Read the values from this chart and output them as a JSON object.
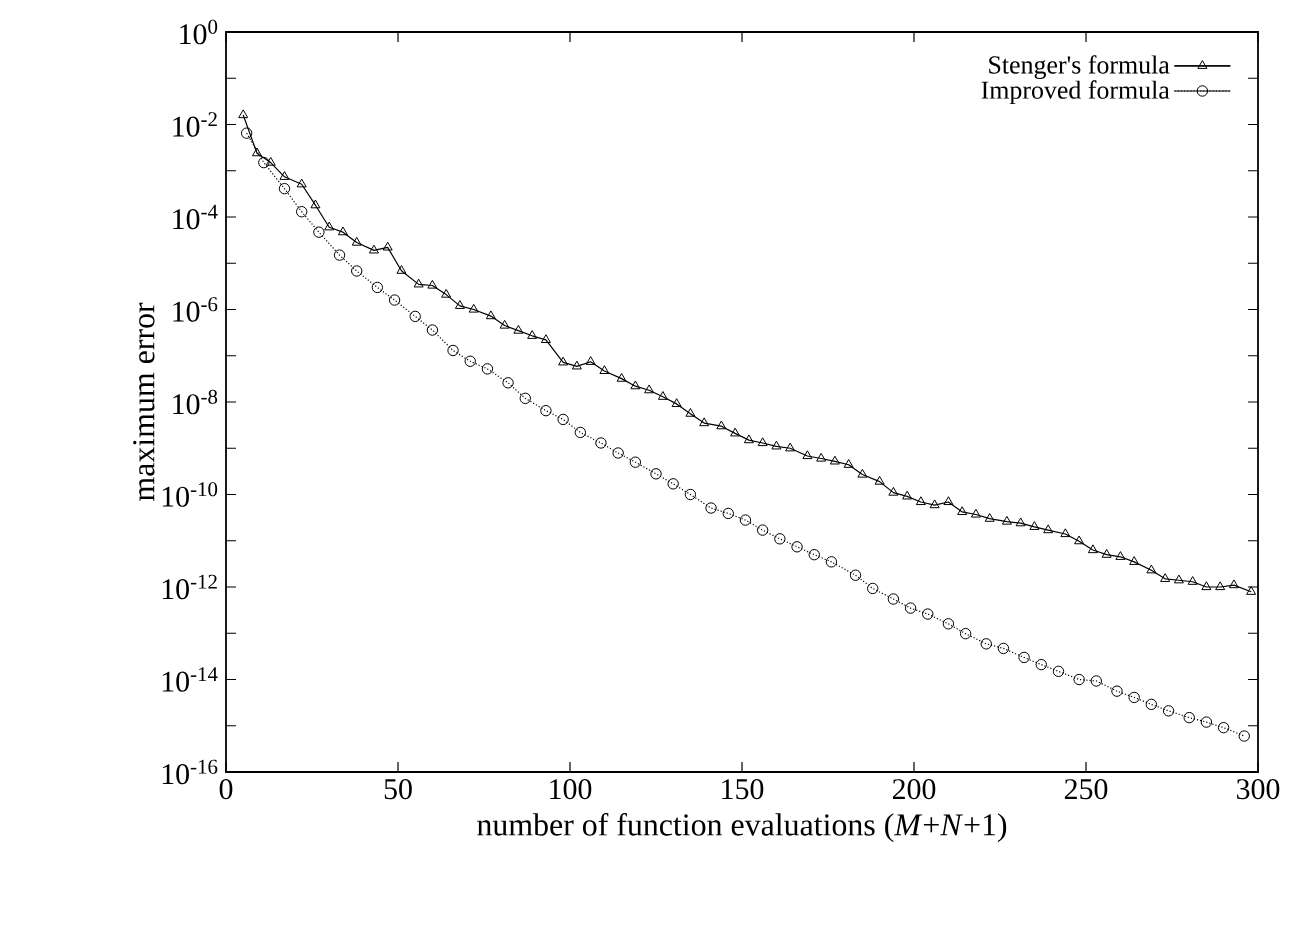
{
  "chart_data": {
    "type": "line",
    "xlabel": "number of function evaluations (*M*+*N*+1)",
    "ylabel": "maximum error",
    "log": "y",
    "grid": false,
    "legend": "top right",
    "xlim": [
      0,
      300
    ],
    "ylim": [
      1e-16,
      1
    ],
    "xticks": [
      0,
      50,
      100,
      150,
      200,
      250,
      300
    ],
    "yticks": [
      {
        "value": 1,
        "label": "10$^{0}$"
      },
      {
        "value": 0.1,
        "label": null
      },
      {
        "value": 0.01,
        "label": "10$^{-2}$"
      },
      {
        "value": 0.001,
        "label": null
      },
      {
        "value": 0.0001,
        "label": "10$^{-4}$"
      },
      {
        "value": 1e-05,
        "label": null
      },
      {
        "value": 1e-06,
        "label": "10$^{-6}$"
      },
      {
        "value": 1e-07,
        "label": null
      },
      {
        "value": 1e-08,
        "label": "10$^{-8}$"
      },
      {
        "value": 1e-09,
        "label": null
      },
      {
        "value": 1e-10,
        "label": "10$^{-10}$"
      },
      {
        "value": 1e-11,
        "label": null
      },
      {
        "value": 1e-12,
        "label": "10$^{-12}$"
      },
      {
        "value": 1e-13,
        "label": null
      },
      {
        "value": 1e-14,
        "label": "10$^{-14}$"
      },
      {
        "value": 1e-15,
        "label": null
      },
      {
        "value": 1e-16,
        "label": "10$^{-16}$"
      }
    ],
    "series": [
      {
        "name": "Stenger's formula",
        "color": "#000000",
        "marker": "triangle",
        "line_style": "solid",
        "x": [
          5,
          9,
          13,
          17,
          22,
          26,
          30,
          34,
          38,
          43,
          47,
          51,
          56,
          60,
          64,
          68,
          72,
          77,
          81,
          85,
          89,
          93,
          98,
          102,
          106,
          110,
          115,
          119,
          123,
          127,
          131,
          135,
          139,
          144,
          148,
          152,
          156,
          160,
          164,
          169,
          173,
          177,
          181,
          185,
          190,
          194,
          198,
          202,
          206,
          210,
          214,
          218,
          222,
          227,
          231,
          235,
          239,
          244,
          248,
          252,
          256,
          260,
          264,
          269,
          273,
          277,
          281,
          285,
          289,
          293,
          298
        ],
        "values": [
          0.016,
          0.0024,
          0.0015,
          0.00074,
          0.00051,
          0.00018,
          6e-05,
          4.7e-05,
          2.8e-05,
          1.9e-05,
          2.2e-05,
          6.9e-06,
          3.5e-06,
          3.3e-06,
          2.1e-06,
          1.2e-06,
          1e-06,
          7.2e-07,
          4.5e-07,
          3.5e-07,
          2.7e-07,
          2.2e-07,
          7.2e-08,
          5.9e-08,
          7.4e-08,
          4.7e-08,
          3.2e-08,
          2.2e-08,
          1.8e-08,
          1.3e-08,
          9.1e-09,
          5.6e-09,
          3.5e-09,
          3e-09,
          2.1e-09,
          1.5e-09,
          1.3e-09,
          1.1e-09,
          1e-09,
          6.8e-10,
          6e-10,
          5.2e-10,
          4.4e-10,
          2.7e-10,
          1.9e-10,
          1.1e-10,
          9.1e-11,
          6.9e-11,
          5.9e-11,
          6.9e-11,
          4.2e-11,
          3.7e-11,
          3e-11,
          2.6e-11,
          2.4e-11,
          2e-11,
          1.7e-11,
          1.4e-11,
          9.8e-12,
          6.3e-12,
          5e-12,
          4.5e-12,
          3.5e-12,
          2.3e-12,
          1.5e-12,
          1.4e-12,
          1.3e-12,
          1e-12,
          1e-12,
          1.1e-12,
          7.9e-13
        ]
      },
      {
        "name": "Improved formula",
        "color": "#000000",
        "marker": "circle",
        "line_style": "dotted",
        "x": [
          6,
          11,
          17,
          22,
          27,
          33,
          38,
          44,
          49,
          55,
          60,
          66,
          71,
          76,
          82,
          87,
          93,
          98,
          103,
          109,
          114,
          119,
          125,
          130,
          135,
          141,
          146,
          151,
          156,
          161,
          166,
          171,
          176,
          183,
          188,
          194,
          199,
          204,
          210,
          215,
          221,
          226,
          232,
          237,
          242,
          248,
          253,
          259,
          264,
          269,
          274,
          280,
          285,
          290,
          296
        ],
        "values": [
          0.0065,
          0.0015,
          0.00041,
          0.00013,
          4.7e-05,
          1.5e-05,
          6.8e-06,
          3e-06,
          1.6e-06,
          7.1e-07,
          3.6e-07,
          1.3e-07,
          7.6e-08,
          5.2e-08,
          2.6e-08,
          1.2e-08,
          6.5e-09,
          4.2e-09,
          2.2e-09,
          1.3e-09,
          7.9e-10,
          5e-10,
          2.8e-10,
          1.7e-10,
          1e-10,
          5.1e-11,
          3.9e-11,
          2.8e-11,
          1.7e-11,
          1.1e-11,
          7.4e-12,
          5e-12,
          3.5e-12,
          1.8e-12,
          9.3e-13,
          5.5e-13,
          3.5e-13,
          2.6e-13,
          1.6e-13,
          9.8e-14,
          5.9e-14,
          4.7e-14,
          3e-14,
          2.1e-14,
          1.5e-14,
          1e-14,
          9.3e-15,
          5.6e-15,
          4.1e-15,
          2.9e-15,
          2.1e-15,
          1.5e-15,
          1.2e-15,
          9.1e-16,
          6e-16
        ]
      }
    ]
  }
}
